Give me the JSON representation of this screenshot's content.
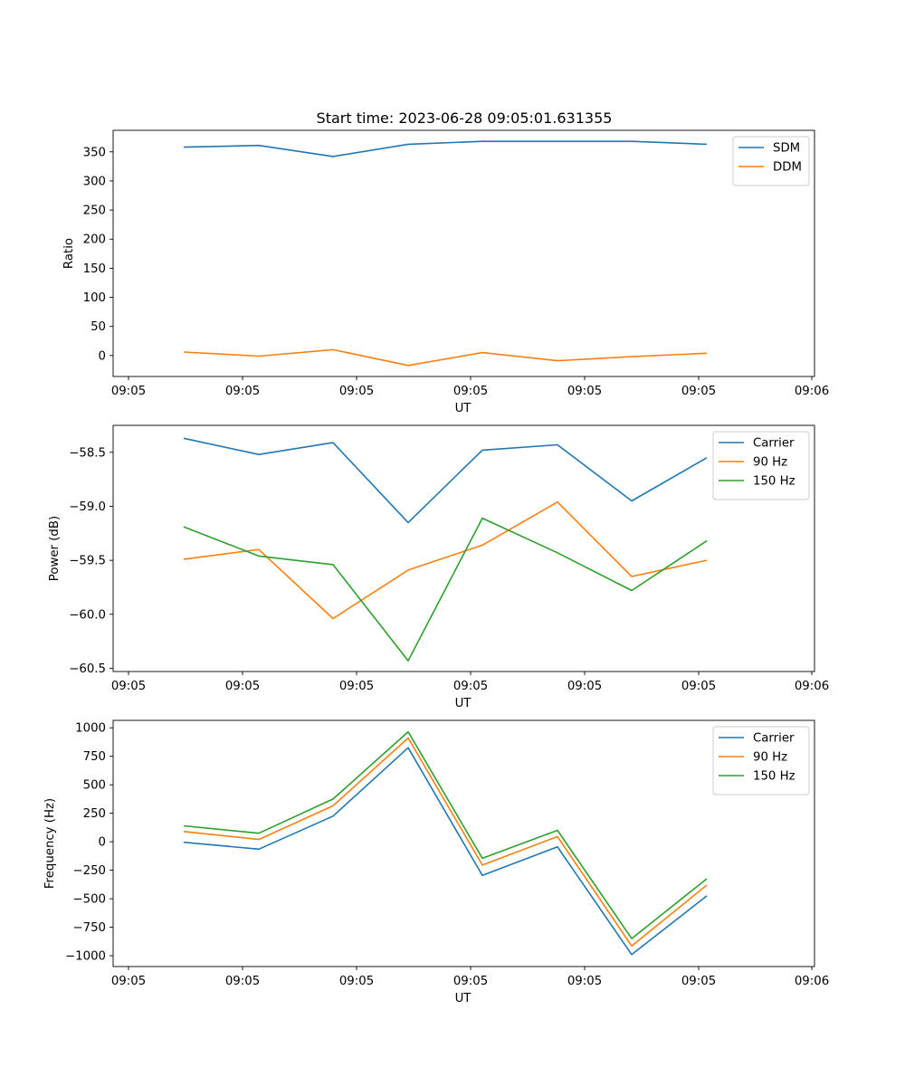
{
  "figure_title": "Start time: 2023-06-28 09:05:01.631355",
  "colors": {
    "blue": "#1f77b4",
    "orange": "#ff7f0e",
    "green": "#2ca02c"
  },
  "chart_data": [
    {
      "type": "line",
      "title": "Start time: 2023-06-28 09:05:01.631355",
      "xlabel": "UT",
      "ylabel": "Ratio",
      "x_tick_labels": [
        "09:05",
        "09:05",
        "09:05",
        "09:05",
        "09:05",
        "09:05",
        "09:06"
      ],
      "y_ticks": [
        0,
        50,
        100,
        150,
        200,
        250,
        300,
        350
      ],
      "ylim": [
        -36,
        387
      ],
      "grid": false,
      "legend_position": "top-right",
      "series": [
        {
          "name": "SDM",
          "color": "#1f77b4",
          "values": [
            358,
            361,
            342,
            363,
            368,
            368,
            368,
            363
          ]
        },
        {
          "name": "DDM",
          "color": "#ff7f0e",
          "values": [
            6,
            -1,
            10,
            -17,
            5,
            -9,
            -2,
            4
          ]
        }
      ]
    },
    {
      "type": "line",
      "xlabel": "UT",
      "ylabel": "Power (dB)",
      "x_tick_labels": [
        "09:05",
        "09:05",
        "09:05",
        "09:05",
        "09:05",
        "09:05",
        "09:06"
      ],
      "y_ticks": [
        -60.5,
        -60.0,
        -59.5,
        -59.0,
        -58.5
      ],
      "y_tick_labels": [
        "−60.5",
        "−60.0",
        "−59.5",
        "−59.0",
        "−58.5"
      ],
      "ylim": [
        -60.53,
        -58.25
      ],
      "grid": false,
      "legend_position": "top-right",
      "series": [
        {
          "name": "Carrier",
          "color": "#1f77b4",
          "values": [
            -58.37,
            -58.52,
            -58.41,
            -59.15,
            -58.48,
            -58.43,
            -58.95,
            -58.55
          ]
        },
        {
          "name": "90 Hz",
          "color": "#ff7f0e",
          "values": [
            -59.49,
            -59.4,
            -60.04,
            -59.59,
            -59.36,
            -58.96,
            -59.65,
            -59.5
          ]
        },
        {
          "name": "150 Hz",
          "color": "#2ca02c",
          "values": [
            -59.19,
            -59.46,
            -59.54,
            -60.43,
            -59.11,
            -59.43,
            -59.78,
            -59.32
          ]
        }
      ]
    },
    {
      "type": "line",
      "xlabel": "UT",
      "ylabel": "Frequency (Hz)",
      "x_tick_labels": [
        "09:05",
        "09:05",
        "09:05",
        "09:05",
        "09:05",
        "09:05",
        "09:06"
      ],
      "y_ticks": [
        -1000,
        -750,
        -500,
        -250,
        0,
        250,
        500,
        750,
        1000
      ],
      "y_tick_labels": [
        "−1000",
        "−750",
        "−500",
        "−250",
        "0",
        "250",
        "500",
        "750",
        "1000"
      ],
      "ylim": [
        -1095,
        1065
      ],
      "grid": false,
      "legend_position": "top-right",
      "series": [
        {
          "name": "Carrier",
          "color": "#1f77b4",
          "values": [
            -5,
            -65,
            225,
            825,
            -295,
            -45,
            -990,
            -475
          ]
        },
        {
          "name": "90 Hz",
          "color": "#ff7f0e",
          "values": [
            90,
            20,
            315,
            910,
            -205,
            45,
            -915,
            -380
          ]
        },
        {
          "name": "150 Hz",
          "color": "#2ca02c",
          "values": [
            140,
            75,
            375,
            965,
            -145,
            100,
            -850,
            -325
          ]
        }
      ]
    }
  ]
}
